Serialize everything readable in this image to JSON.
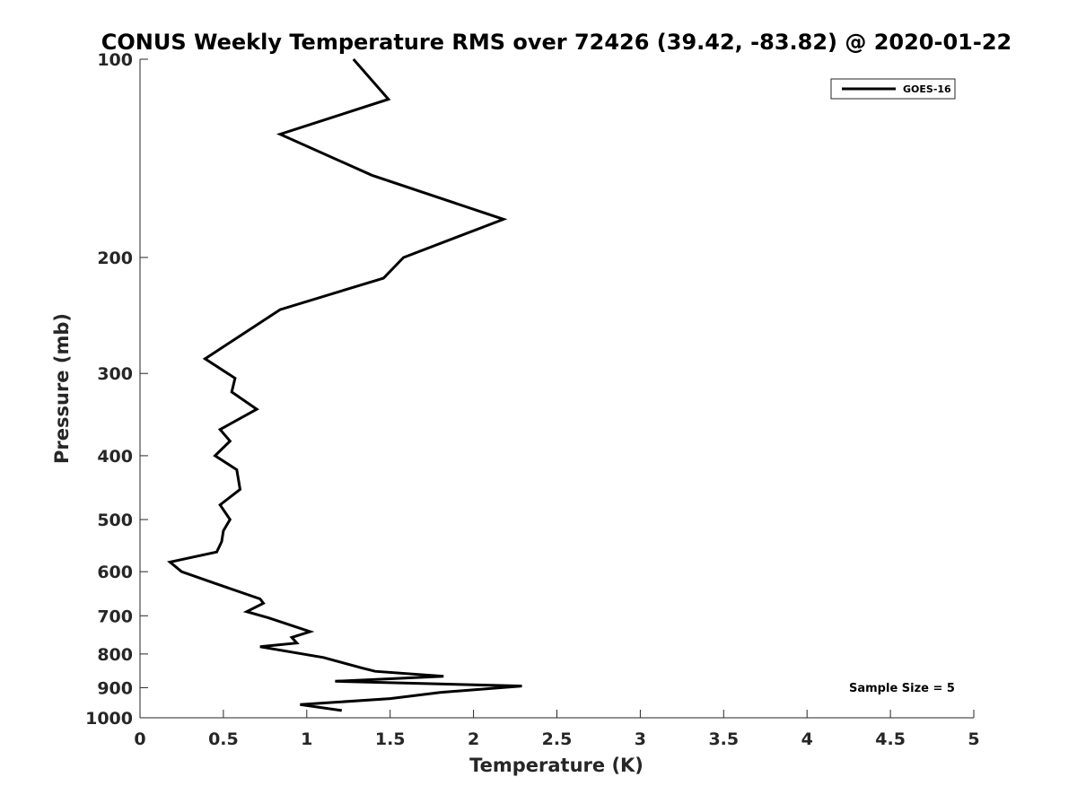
{
  "chart_data": {
    "type": "line",
    "title": "CONUS Weekly Temperature RMS over 72426 (39.42, -83.82) @ 2020-01-22",
    "xlabel": "Temperature (K)",
    "ylabel": "Pressure (mb)",
    "xlim": [
      0,
      5
    ],
    "ylim": [
      100,
      1000
    ],
    "y_scale": "log",
    "y_reversed": true,
    "x_ticks": [
      0,
      0.5,
      1,
      1.5,
      2,
      2.5,
      3,
      3.5,
      4,
      4.5,
      5
    ],
    "x_tick_labels": [
      "0",
      "0.5",
      "1",
      "1.5",
      "2",
      "2.5",
      "3",
      "3.5",
      "4",
      "4.5",
      "5"
    ],
    "y_ticks": [
      100,
      200,
      300,
      400,
      500,
      600,
      700,
      800,
      900,
      1000
    ],
    "y_tick_labels": [
      "100",
      "200",
      "300",
      "400",
      "500",
      "600",
      "700",
      "800",
      "900",
      "1000"
    ],
    "grid": false,
    "legend_position": "top-right",
    "annotation": "Sample Size = 5",
    "series": [
      {
        "name": "GOES-16",
        "color": "#000000",
        "points": [
          [
            1.28,
            100
          ],
          [
            1.49,
            115
          ],
          [
            0.84,
            130
          ],
          [
            1.39,
            150
          ],
          [
            2.18,
            175
          ],
          [
            1.58,
            200
          ],
          [
            1.46,
            215
          ],
          [
            0.84,
            240
          ],
          [
            0.58,
            265
          ],
          [
            0.39,
            285
          ],
          [
            0.57,
            305
          ],
          [
            0.55,
            320
          ],
          [
            0.7,
            340
          ],
          [
            0.48,
            365
          ],
          [
            0.54,
            380
          ],
          [
            0.45,
            400
          ],
          [
            0.58,
            420
          ],
          [
            0.6,
            450
          ],
          [
            0.48,
            475
          ],
          [
            0.54,
            500
          ],
          [
            0.5,
            520
          ],
          [
            0.49,
            540
          ],
          [
            0.46,
            560
          ],
          [
            0.18,
            580
          ],
          [
            0.25,
            600
          ],
          [
            0.45,
            625
          ],
          [
            0.72,
            660
          ],
          [
            0.74,
            670
          ],
          [
            0.64,
            690
          ],
          [
            0.77,
            705
          ],
          [
            1.02,
            740
          ],
          [
            0.91,
            755
          ],
          [
            0.94,
            770
          ],
          [
            0.72,
            780
          ],
          [
            1.1,
            810
          ],
          [
            1.33,
            840
          ],
          [
            1.41,
            850
          ],
          [
            1.82,
            865
          ],
          [
            1.17,
            880
          ],
          [
            2.29,
            895
          ],
          [
            1.8,
            915
          ],
          [
            1.5,
            935
          ],
          [
            0.96,
            955
          ],
          [
            1.21,
            975
          ]
        ]
      }
    ]
  }
}
